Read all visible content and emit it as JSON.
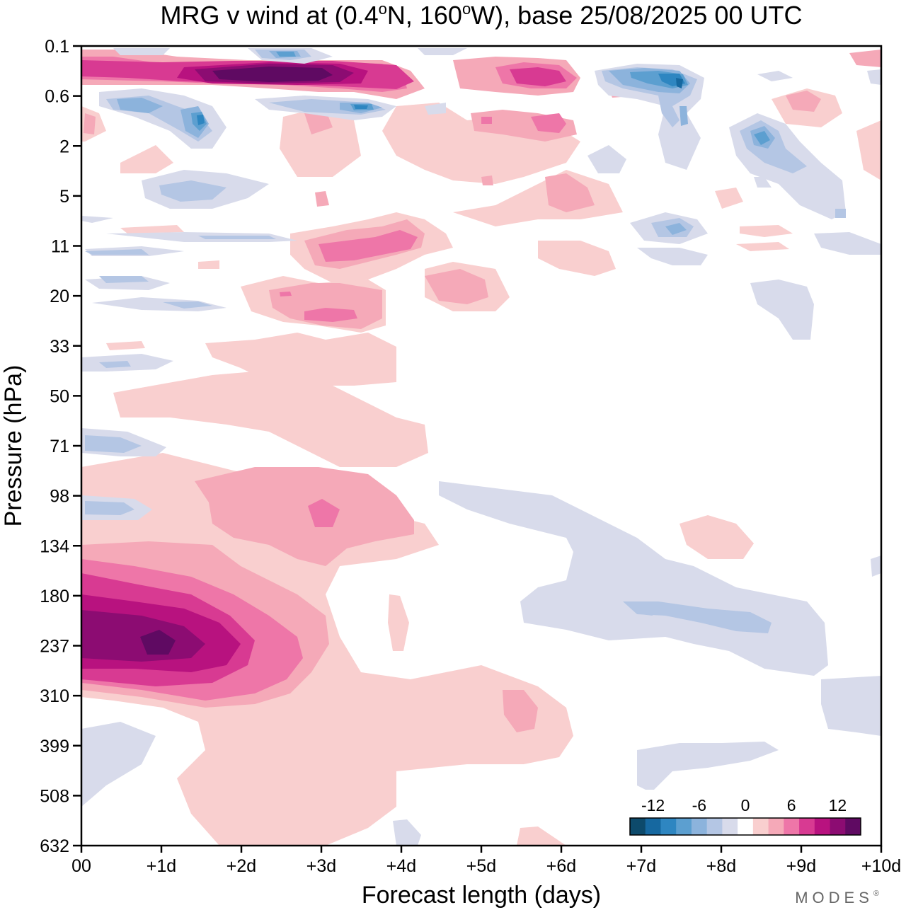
{
  "chart_data": {
    "type": "heatmap",
    "title_parts": {
      "prefix": "MRG v wind at (0.4",
      "deg1": "o",
      "mid": "N, 160",
      "deg2": "o",
      "suffix": "W),  base 25/08/2025  00 UTC"
    },
    "xlabel": "Forecast length (days)",
    "ylabel": "Pressure (hPa)",
    "x_ticks": [
      "00",
      "+1d",
      "+2d",
      "+3d",
      "+4d",
      "+5d",
      "+6d",
      "+7d",
      "+8d",
      "+9d",
      "+10d"
    ],
    "y_ticks": [
      "0.1",
      "0.6",
      "2",
      "5",
      "11",
      "20",
      "33",
      "50",
      "71",
      "98",
      "134",
      "180",
      "237",
      "310",
      "399",
      "508",
      "632"
    ],
    "xlim": [
      0,
      10
    ],
    "colorbar": {
      "labels": [
        "-12",
        "-6",
        "0",
        "6",
        "12"
      ],
      "levels": [
        -15,
        -13,
        -11,
        -9,
        -7,
        -5,
        -3,
        -1,
        1,
        3,
        5,
        7,
        9,
        11,
        13,
        15
      ],
      "colors": [
        "#0d4a6b",
        "#1668a0",
        "#2e86c1",
        "#5c9fd0",
        "#8cb3dc",
        "#b4c6e4",
        "#d8dbeb",
        "#ffffff",
        "#f9cfcf",
        "#f5a9b8",
        "#ee76a8",
        "#d83a92",
        "#b8127f",
        "#8c0c72",
        "#5f0a62"
      ]
    },
    "features": [
      {
        "name": "tropopause-positive-core",
        "x": [
          0,
          3.5
        ],
        "level": "237",
        "peak_value": 13
      },
      {
        "name": "stratopause-positive-band",
        "x": [
          0,
          4.2
        ],
        "level": "0.3",
        "peak_value": 13
      },
      {
        "name": "mid-forecast-positive",
        "x": [
          5,
          7
        ],
        "level": "0.3",
        "peak_value": 9
      },
      {
        "name": "upper-negative-patch",
        "x": [
          6.5,
          7.5
        ],
        "level": "0.3",
        "peak_value": -11
      },
      {
        "name": "lower-negative-band",
        "x": [
          5.5,
          9.5
        ],
        "level": "180-310",
        "peak_value": -5
      }
    ]
  },
  "branding": {
    "text": "MODES",
    "mark": "®"
  }
}
